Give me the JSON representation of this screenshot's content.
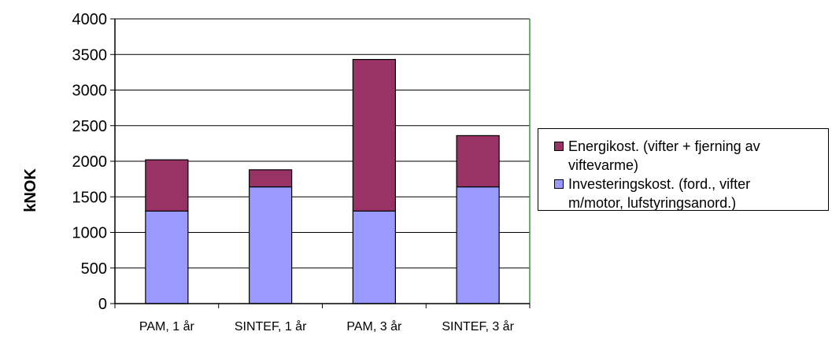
{
  "chart_data": {
    "type": "bar",
    "stacked": true,
    "categories": [
      "PAM, 1 år",
      "SINTEF, 1 år",
      "PAM, 3 år",
      "SINTEF, 3 år"
    ],
    "series": [
      {
        "name": "Investeringskost. (ford., vifter\nm/motor, lufstyringsanord.)",
        "values": [
          1300,
          1640,
          1300,
          1640
        ],
        "color": "#9999ff"
      },
      {
        "name": "Energikost. (vifter + fjerning av\nviftevarme)",
        "values": [
          720,
          240,
          2130,
          720
        ],
        "color": "#993366"
      }
    ],
    "ylabel": "kNOK",
    "xlabel": "",
    "title": "",
    "ylim": [
      0,
      4000
    ],
    "yticks": [
      0,
      500,
      1000,
      1500,
      2000,
      2500,
      3000,
      3500,
      4000
    ],
    "grid": true,
    "legend_position": "right",
    "plot_border_color": "#339933",
    "gridline_color": "#000000"
  }
}
